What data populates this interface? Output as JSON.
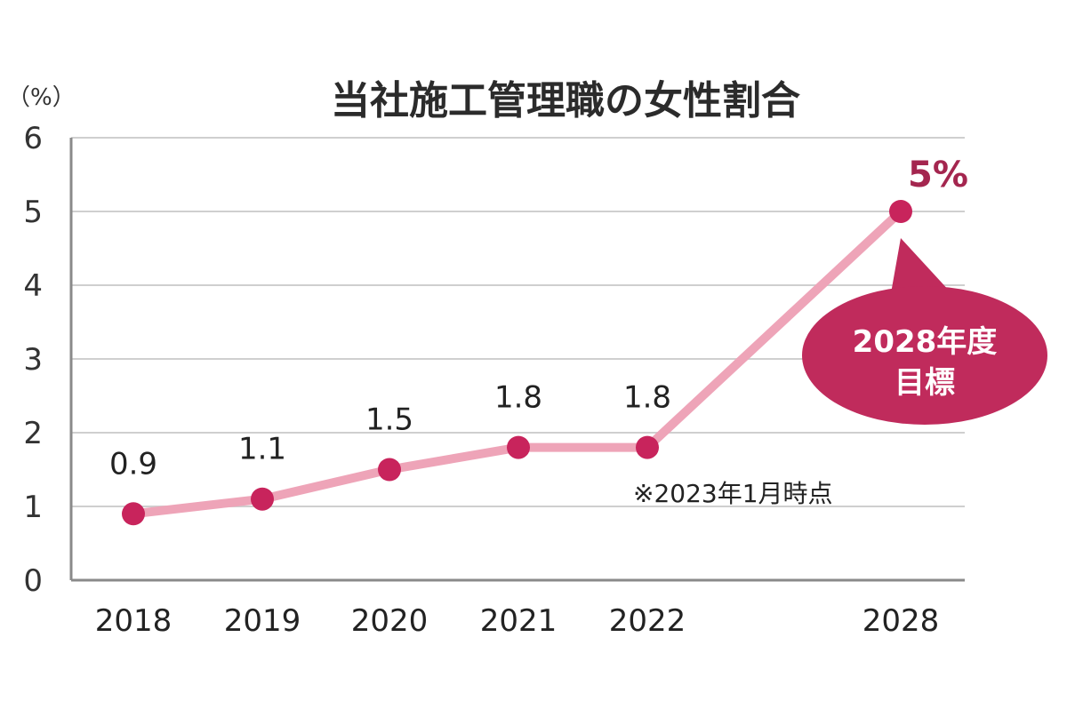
{
  "chart_data": {
    "type": "line",
    "title": "当社施工管理職の女性割合",
    "y_unit": "（%）",
    "categories": [
      "2018",
      "2019",
      "2020",
      "2021",
      "2022",
      "2028"
    ],
    "values": [
      0.9,
      1.1,
      1.5,
      1.8,
      1.8,
      5
    ],
    "data_labels": [
      "0.9",
      "1.1",
      "1.5",
      "1.8",
      "1.8",
      "5%"
    ],
    "y_ticks": [
      "0",
      "1",
      "2",
      "3",
      "4",
      "5",
      "6"
    ],
    "ylim": [
      0,
      6
    ],
    "grid": true,
    "target_bubble": {
      "line1": "2028年度",
      "line2": "目標"
    },
    "note": "※2023年1月時点"
  },
  "colors": {
    "line": "#eea4b8",
    "marker": "#c8245c",
    "bubble": "#c02b5c",
    "target_label": "#a4264f"
  }
}
